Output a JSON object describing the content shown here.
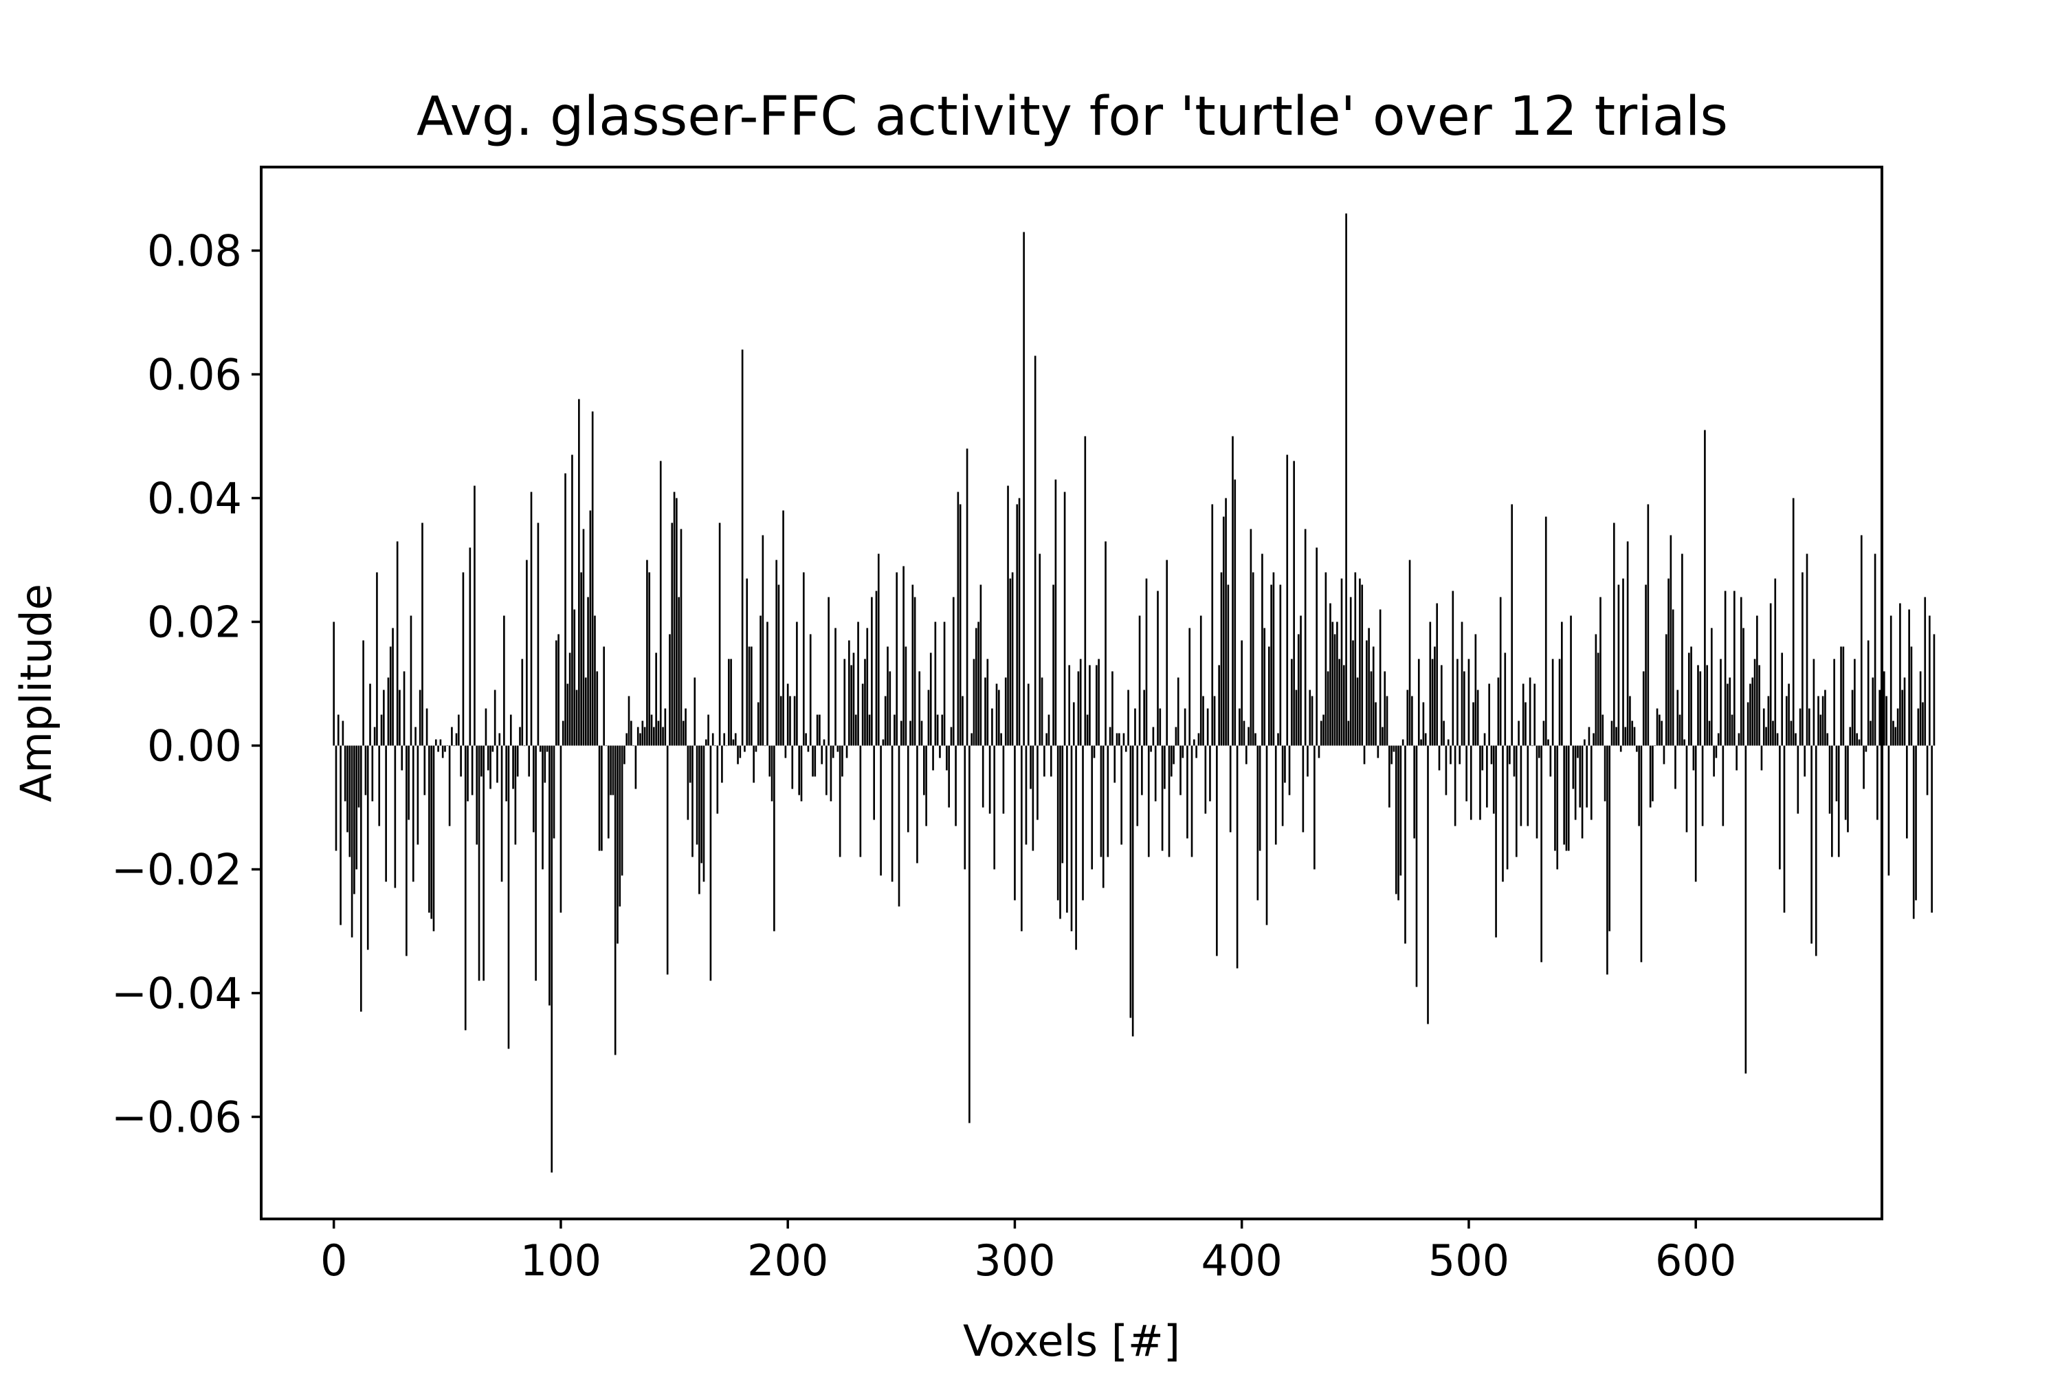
{
  "chart_data": {
    "type": "bar",
    "title": "Avg. glasser-FFC activity for 'turtle' over 12 trials",
    "xlabel": "Voxels [#]",
    "ylabel": "Amplitude",
    "xlim": [
      -32,
      682
    ],
    "ylim": [
      -0.0765,
      0.0935
    ],
    "xticks": [
      0,
      100,
      200,
      300,
      400,
      500,
      600
    ],
    "xtick_labels": [
      "0",
      "100",
      "200",
      "300",
      "400",
      "500",
      "600"
    ],
    "yticks": [
      -0.06,
      -0.04,
      -0.02,
      0.0,
      0.02,
      0.04,
      0.06,
      0.08
    ],
    "ytick_labels": [
      "−0.06",
      "−0.04",
      "−0.02",
      "0.00",
      "0.02",
      "0.04",
      "0.06",
      "0.08"
    ],
    "grid": false,
    "bar_color": "#000000",
    "x_start": 0,
    "values": [
      0.02,
      -0.017,
      0.005,
      -0.029,
      0.004,
      -0.009,
      -0.014,
      -0.018,
      -0.031,
      -0.024,
      -0.02,
      -0.01,
      -0.043,
      0.017,
      -0.008,
      -0.033,
      0.01,
      -0.009,
      0.003,
      0.028,
      -0.013,
      0.005,
      0.009,
      -0.022,
      0.011,
      0.016,
      0.019,
      -0.023,
      0.033,
      0.009,
      -0.004,
      0.012,
      -0.034,
      -0.012,
      0.021,
      -0.022,
      0.003,
      -0.016,
      0.009,
      0.036,
      -0.008,
      0.006,
      -0.027,
      -0.028,
      -0.03,
      0.001,
      -0.001,
      0.001,
      -0.002,
      -0.001,
      0.0,
      -0.013,
      0.003,
      0.0,
      0.002,
      0.005,
      -0.005,
      0.028,
      -0.046,
      -0.009,
      0.032,
      -0.008,
      0.042,
      -0.016,
      -0.038,
      -0.005,
      -0.038,
      0.006,
      -0.004,
      -0.007,
      -0.001,
      0.009,
      -0.006,
      0.002,
      -0.022,
      0.021,
      -0.009,
      -0.049,
      0.005,
      -0.007,
      -0.016,
      -0.005,
      0.003,
      0.014,
      0.0,
      0.03,
      -0.005,
      0.041,
      -0.014,
      -0.038,
      0.036,
      -0.001,
      -0.02,
      -0.006,
      -0.001,
      -0.042,
      -0.069,
      -0.015,
      0.017,
      0.018,
      -0.027,
      0.004,
      0.044,
      0.01,
      0.015,
      0.047,
      0.022,
      0.009,
      0.056,
      0.028,
      0.035,
      0.011,
      0.024,
      0.038,
      0.054,
      0.021,
      0.012,
      -0.017,
      -0.017,
      0.016,
      0.0,
      -0.015,
      -0.008,
      -0.008,
      -0.05,
      -0.032,
      -0.026,
      -0.021,
      -0.003,
      0.002,
      0.008,
      0.004,
      0.0,
      -0.007,
      0.003,
      0.002,
      0.004,
      0.003,
      0.03,
      0.028,
      0.005,
      0.003,
      0.015,
      0.004,
      0.046,
      0.003,
      0.006,
      -0.037,
      0.018,
      0.036,
      0.041,
      0.04,
      0.024,
      0.035,
      0.004,
      0.006,
      -0.012,
      -0.006,
      -0.018,
      0.011,
      -0.016,
      -0.024,
      -0.019,
      -0.022,
      0.001,
      0.005,
      -0.038,
      0.002,
      0.0,
      -0.011,
      0.036,
      -0.006,
      0.002,
      0.0,
      0.014,
      0.014,
      0.001,
      0.002,
      -0.003,
      -0.002,
      0.064,
      -0.001,
      0.027,
      0.016,
      0.016,
      -0.006,
      -0.001,
      0.007,
      0.021,
      0.034,
      0.0,
      0.02,
      -0.005,
      -0.009,
      -0.03,
      0.03,
      0.026,
      0.008,
      0.038,
      -0.002,
      0.01,
      0.008,
      -0.007,
      0.008,
      0.02,
      -0.008,
      -0.009,
      0.028,
      0.002,
      -0.001,
      0.018,
      -0.005,
      -0.005,
      0.005,
      0.005,
      -0.003,
      0.001,
      -0.008,
      0.024,
      -0.009,
      -0.002,
      0.019,
      -0.001,
      -0.018,
      -0.005,
      0.014,
      -0.002,
      0.017,
      0.013,
      0.015,
      0.005,
      0.02,
      -0.018,
      0.01,
      0.014,
      0.019,
      0.005,
      0.024,
      -0.012,
      0.025,
      0.031,
      -0.021,
      0.001,
      0.008,
      0.016,
      0.012,
      -0.022,
      0.005,
      0.028,
      -0.026,
      0.004,
      0.029,
      0.016,
      -0.014,
      0.004,
      0.026,
      0.024,
      -0.019,
      0.012,
      0.004,
      -0.008,
      -0.013,
      0.009,
      0.015,
      -0.004,
      0.02,
      0.005,
      -0.002,
      0.005,
      0.02,
      -0.004,
      -0.01,
      0.003,
      0.024,
      -0.013,
      0.041,
      0.039,
      0.008,
      -0.02,
      0.048,
      -0.061,
      0.002,
      0.014,
      0.019,
      0.02,
      0.026,
      -0.01,
      0.011,
      0.014,
      -0.011,
      0.006,
      -0.02,
      0.01,
      0.009,
      0.002,
      -0.011,
      0.011,
      0.042,
      0.027,
      0.028,
      -0.025,
      0.039,
      0.04,
      -0.03,
      0.083,
      -0.016,
      0.01,
      -0.007,
      -0.017,
      0.063,
      -0.012,
      0.031,
      0.011,
      -0.005,
      0.002,
      0.005,
      -0.005,
      0.026,
      0.043,
      -0.025,
      -0.028,
      -0.019,
      0.041,
      -0.027,
      0.013,
      -0.03,
      0.007,
      -0.033,
      0.012,
      0.014,
      -0.025,
      0.05,
      0.005,
      0.013,
      -0.02,
      -0.002,
      0.013,
      0.014,
      -0.018,
      -0.023,
      0.033,
      -0.018,
      0.003,
      0.012,
      -0.006,
      0.002,
      0.002,
      -0.016,
      0.002,
      -0.001,
      0.009,
      -0.044,
      -0.047,
      0.006,
      -0.013,
      0.021,
      -0.008,
      0.009,
      0.027,
      -0.018,
      -0.001,
      0.003,
      -0.009,
      0.025,
      0.006,
      -0.017,
      -0.007,
      0.03,
      -0.018,
      -0.005,
      -0.003,
      0.003,
      0.011,
      -0.008,
      -0.002,
      0.006,
      -0.015,
      0.019,
      -0.018,
      0.001,
      -0.002,
      0.002,
      0.021,
      0.008,
      -0.011,
      0.006,
      -0.009,
      0.039,
      0.008,
      -0.034,
      0.013,
      0.028,
      0.037,
      0.04,
      0.026,
      -0.014,
      0.05,
      0.043,
      -0.036,
      0.006,
      0.017,
      0.004,
      -0.003,
      0.003,
      0.035,
      0.028,
      0.002,
      -0.025,
      -0.017,
      0.031,
      0.019,
      -0.029,
      0.016,
      0.026,
      0.028,
      -0.016,
      0.002,
      0.026,
      -0.013,
      -0.006,
      0.047,
      -0.008,
      0.014,
      0.046,
      0.009,
      0.018,
      0.021,
      -0.014,
      0.035,
      -0.005,
      0.009,
      0.008,
      -0.02,
      0.032,
      -0.002,
      0.004,
      0.005,
      0.028,
      0.012,
      0.023,
      0.02,
      0.018,
      0.02,
      0.014,
      0.027,
      0.013,
      0.086,
      0.004,
      0.024,
      0.017,
      0.028,
      0.011,
      0.027,
      0.026,
      -0.003,
      0.017,
      0.019,
      0.012,
      0.016,
      0.007,
      -0.002,
      0.022,
      0.003,
      0.012,
      0.008,
      -0.01,
      -0.003,
      -0.001,
      -0.024,
      -0.025,
      -0.021,
      0.001,
      -0.032,
      0.009,
      0.03,
      0.008,
      -0.015,
      -0.039,
      0.014,
      0.001,
      0.007,
      0.002,
      -0.045,
      0.02,
      0.014,
      0.016,
      0.023,
      -0.004,
      0.013,
      0.004,
      -0.008,
      0.001,
      -0.003,
      0.025,
      -0.013,
      0.014,
      -0.003,
      0.02,
      0.012,
      -0.009,
      0.014,
      -0.012,
      0.007,
      0.018,
      0.009,
      -0.012,
      -0.004,
      0.002,
      -0.01,
      0.01,
      -0.003,
      -0.011,
      -0.031,
      0.011,
      0.024,
      -0.022,
      0.015,
      -0.02,
      -0.003,
      0.039,
      -0.005,
      -0.018,
      0.004,
      -0.013,
      0.01,
      0.007,
      -0.013,
      0.011,
      0.0,
      0.01,
      -0.015,
      -0.002,
      -0.035,
      0.004,
      0.037,
      0.001,
      -0.005,
      0.014,
      -0.017,
      -0.02,
      0.014,
      0.02,
      -0.016,
      -0.017,
      -0.017,
      0.021,
      -0.007,
      -0.012,
      -0.002,
      -0.01,
      -0.015,
      0.001,
      -0.01,
      0.003,
      -0.012,
      0.002,
      0.018,
      0.015,
      0.024,
      0.005,
      -0.009,
      -0.037,
      -0.03,
      0.004,
      0.036,
      0.003,
      0.026,
      -0.001,
      0.027,
      0.003,
      0.033,
      0.008,
      0.004,
      0.003,
      -0.001,
      -0.013,
      -0.035,
      0.012,
      0.026,
      0.039,
      -0.01,
      -0.009,
      0.0,
      0.006,
      0.005,
      0.004,
      -0.003,
      0.018,
      0.027,
      0.034,
      0.022,
      -0.007,
      0.009,
      0.005,
      0.031,
      0.001,
      -0.014,
      0.015,
      0.016,
      -0.004,
      -0.022,
      0.013,
      0.012,
      -0.013,
      0.051,
      0.013,
      0.004,
      0.019,
      -0.005,
      -0.002,
      0.002,
      0.014,
      -0.013,
      0.025,
      0.01,
      0.011,
      0.005,
      0.025,
      -0.004,
      0.002,
      0.024,
      0.019,
      -0.053,
      0.007,
      0.01,
      0.011,
      0.014,
      0.021,
      0.013,
      -0.004,
      0.006,
      0.003,
      0.008,
      0.023,
      0.004,
      0.027,
      0.002,
      -0.02,
      0.015,
      -0.027,
      0.008,
      0.01,
      0.004,
      0.04,
      0.002,
      -0.011,
      0.006,
      0.028,
      -0.005,
      0.031,
      0.006,
      -0.032,
      0.014,
      -0.034,
      0.008,
      0.005,
      0.008,
      0.009,
      0.002,
      -0.011,
      -0.018,
      0.014,
      -0.009,
      -0.018,
      0.016,
      0.016,
      -0.012,
      -0.014,
      0.003,
      0.009,
      0.014,
      0.002,
      0.001,
      0.034,
      -0.007,
      -0.001,
      0.017,
      0.004,
      0.011,
      0.031,
      -0.012,
      0.009,
      -0.029,
      0.012,
      0.008,
      -0.021,
      0.021,
      0.004,
      0.003,
      0.006,
      0.023,
      0.009,
      0.011,
      -0.015,
      0.022,
      0.016,
      -0.028,
      -0.025,
      0.006,
      0.012,
      0.007,
      0.024,
      -0.008,
      0.021,
      -0.027,
      0.018
    ]
  }
}
